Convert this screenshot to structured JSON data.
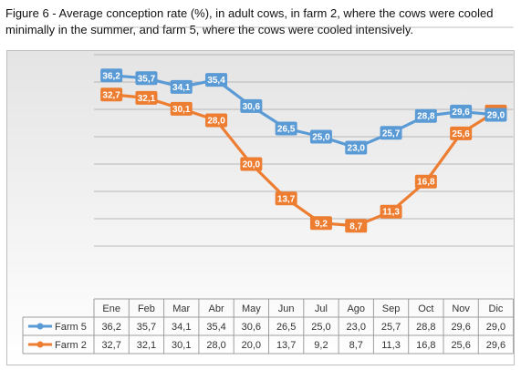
{
  "caption": "Figure 6 - Average conception rate (%), in adult cows, in farm 2, where the cows were cooled minimally in the summer, and farm 5, where the cows were cooled intensively.",
  "colors": {
    "farm5": "#5b9bd5",
    "farm2": "#ed7d31",
    "grid": "#a6a6a6",
    "table_border": "#9e9e9e"
  },
  "chart_data": {
    "type": "line",
    "title": "",
    "xlabel": "",
    "ylabel": "",
    "ylim": [
      0,
      45
    ],
    "grid": true,
    "legend": "data-table",
    "categories": [
      "Ene",
      "Feb",
      "Mar",
      "Abr",
      "May",
      "Jun",
      "Jul",
      "Ago",
      "Sep",
      "Oct",
      "Nov",
      "Dic"
    ],
    "series": [
      {
        "name": "Farm 5",
        "values": [
          36.2,
          35.7,
          34.1,
          35.4,
          30.6,
          26.5,
          25.0,
          23.0,
          25.7,
          28.8,
          29.6,
          29.0
        ],
        "labels": [
          "36,2",
          "35,7",
          "34,1",
          "35,4",
          "30,6",
          "26,5",
          "25,0",
          "23,0",
          "25,7",
          "28,8",
          "29,6",
          "29,0"
        ]
      },
      {
        "name": "Farm 2",
        "values": [
          32.7,
          32.1,
          30.1,
          28.0,
          20.0,
          13.7,
          9.2,
          8.7,
          11.3,
          16.8,
          25.6,
          29.6
        ],
        "labels": [
          "32,7",
          "32,1",
          "30,1",
          "28,0",
          "20,0",
          "13,7",
          "9,2",
          "8,7",
          "11,3",
          "16,8",
          "25,6",
          "29,6"
        ]
      }
    ]
  }
}
